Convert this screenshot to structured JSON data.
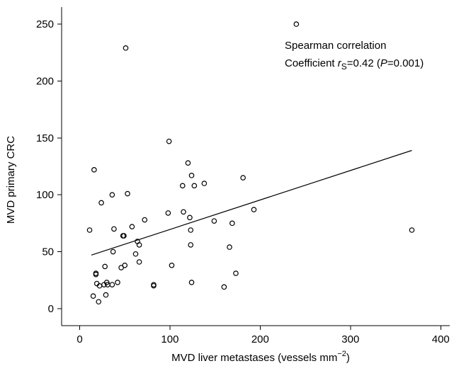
{
  "chart_data": {
    "type": "scatter",
    "xlabel_main": "MVD liver metastases (vessels mm",
    "xlabel_exp": "−2",
    "xlabel_end": ")",
    "ylabel": "MVD primary CRC",
    "xlim": [
      -20,
      410
    ],
    "ylim": [
      -15,
      265
    ],
    "xticks": [
      0,
      100,
      200,
      300,
      400
    ],
    "yticks": [
      0,
      50,
      100,
      150,
      200,
      250
    ],
    "annotation": {
      "line1": "Spearman correlation",
      "line2_prefix": "Coefficient ",
      "line2_r": "r",
      "line2_sub": "S",
      "line2_value": "=0.42 (",
      "line2_p": "P",
      "line2_pval": "=0.001)"
    },
    "regression_line": {
      "x1": 13,
      "y1": 47,
      "x2": 368,
      "y2": 139
    },
    "points": [
      [
        11,
        69
      ],
      [
        15,
        11
      ],
      [
        16,
        122
      ],
      [
        18,
        31
      ],
      [
        18,
        30
      ],
      [
        19,
        22
      ],
      [
        21,
        6
      ],
      [
        22,
        20
      ],
      [
        24,
        93
      ],
      [
        27,
        21
      ],
      [
        28,
        37
      ],
      [
        29,
        12
      ],
      [
        30,
        23
      ],
      [
        31,
        21
      ],
      [
        36,
        100
      ],
      [
        36,
        21
      ],
      [
        37,
        50
      ],
      [
        38,
        70
      ],
      [
        42,
        23
      ],
      [
        46,
        36
      ],
      [
        48,
        64
      ],
      [
        49,
        64
      ],
      [
        50,
        38
      ],
      [
        51,
        229
      ],
      [
        53,
        101
      ],
      [
        58,
        72
      ],
      [
        62,
        48
      ],
      [
        64,
        59
      ],
      [
        66,
        56
      ],
      [
        66,
        41
      ],
      [
        72,
        78
      ],
      [
        82,
        21
      ],
      [
        82,
        20
      ],
      [
        98,
        84
      ],
      [
        99,
        147
      ],
      [
        102,
        38
      ],
      [
        114,
        108
      ],
      [
        115,
        85
      ],
      [
        120,
        128
      ],
      [
        122,
        80
      ],
      [
        123,
        56
      ],
      [
        123,
        69
      ],
      [
        124,
        23
      ],
      [
        124,
        117
      ],
      [
        127,
        108
      ],
      [
        138,
        110
      ],
      [
        149,
        77
      ],
      [
        160,
        19
      ],
      [
        166,
        54
      ],
      [
        169,
        75
      ],
      [
        173,
        31
      ],
      [
        181,
        115
      ],
      [
        193,
        87
      ],
      [
        240,
        250
      ],
      [
        368,
        69
      ]
    ]
  }
}
